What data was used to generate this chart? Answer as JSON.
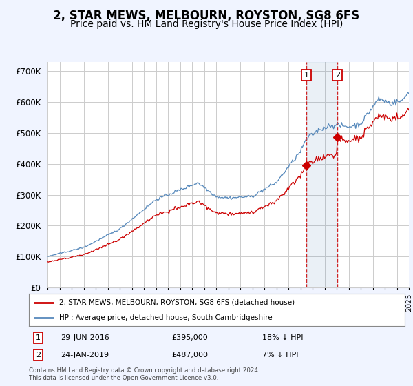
{
  "title": "2, STAR MEWS, MELBOURN, ROYSTON, SG8 6FS",
  "subtitle": "Price paid vs. HM Land Registry's House Price Index (HPI)",
  "yticks": [
    0,
    100000,
    200000,
    300000,
    400000,
    500000,
    600000,
    700000
  ],
  "ytick_labels": [
    "£0",
    "£100K",
    "£200K",
    "£300K",
    "£400K",
    "£500K",
    "£600K",
    "£700K"
  ],
  "xlim_year_start": 1995,
  "xlim_year_end": 2025,
  "ylim": [
    0,
    730000
  ],
  "sale1_date": "29-JUN-2016",
  "sale1_price": 395000,
  "sale1_label": "18% ↓ HPI",
  "sale1_year": 2016.49,
  "sale2_date": "24-JAN-2019",
  "sale2_price": 487000,
  "sale2_label": "7% ↓ HPI",
  "sale2_year": 2019.07,
  "legend_line1": "2, STAR MEWS, MELBOURN, ROYSTON, SG8 6FS (detached house)",
  "legend_line2": "HPI: Average price, detached house, South Cambridgeshire",
  "footer": "Contains HM Land Registry data © Crown copyright and database right 2024.\nThis data is licensed under the Open Government Licence v3.0.",
  "hpi_color": "#5588bb",
  "price_color": "#cc0000",
  "background_color": "#f0f4ff",
  "plot_bg": "#ffffff",
  "grid_color": "#cccccc",
  "title_fontsize": 12,
  "subtitle_fontsize": 10
}
